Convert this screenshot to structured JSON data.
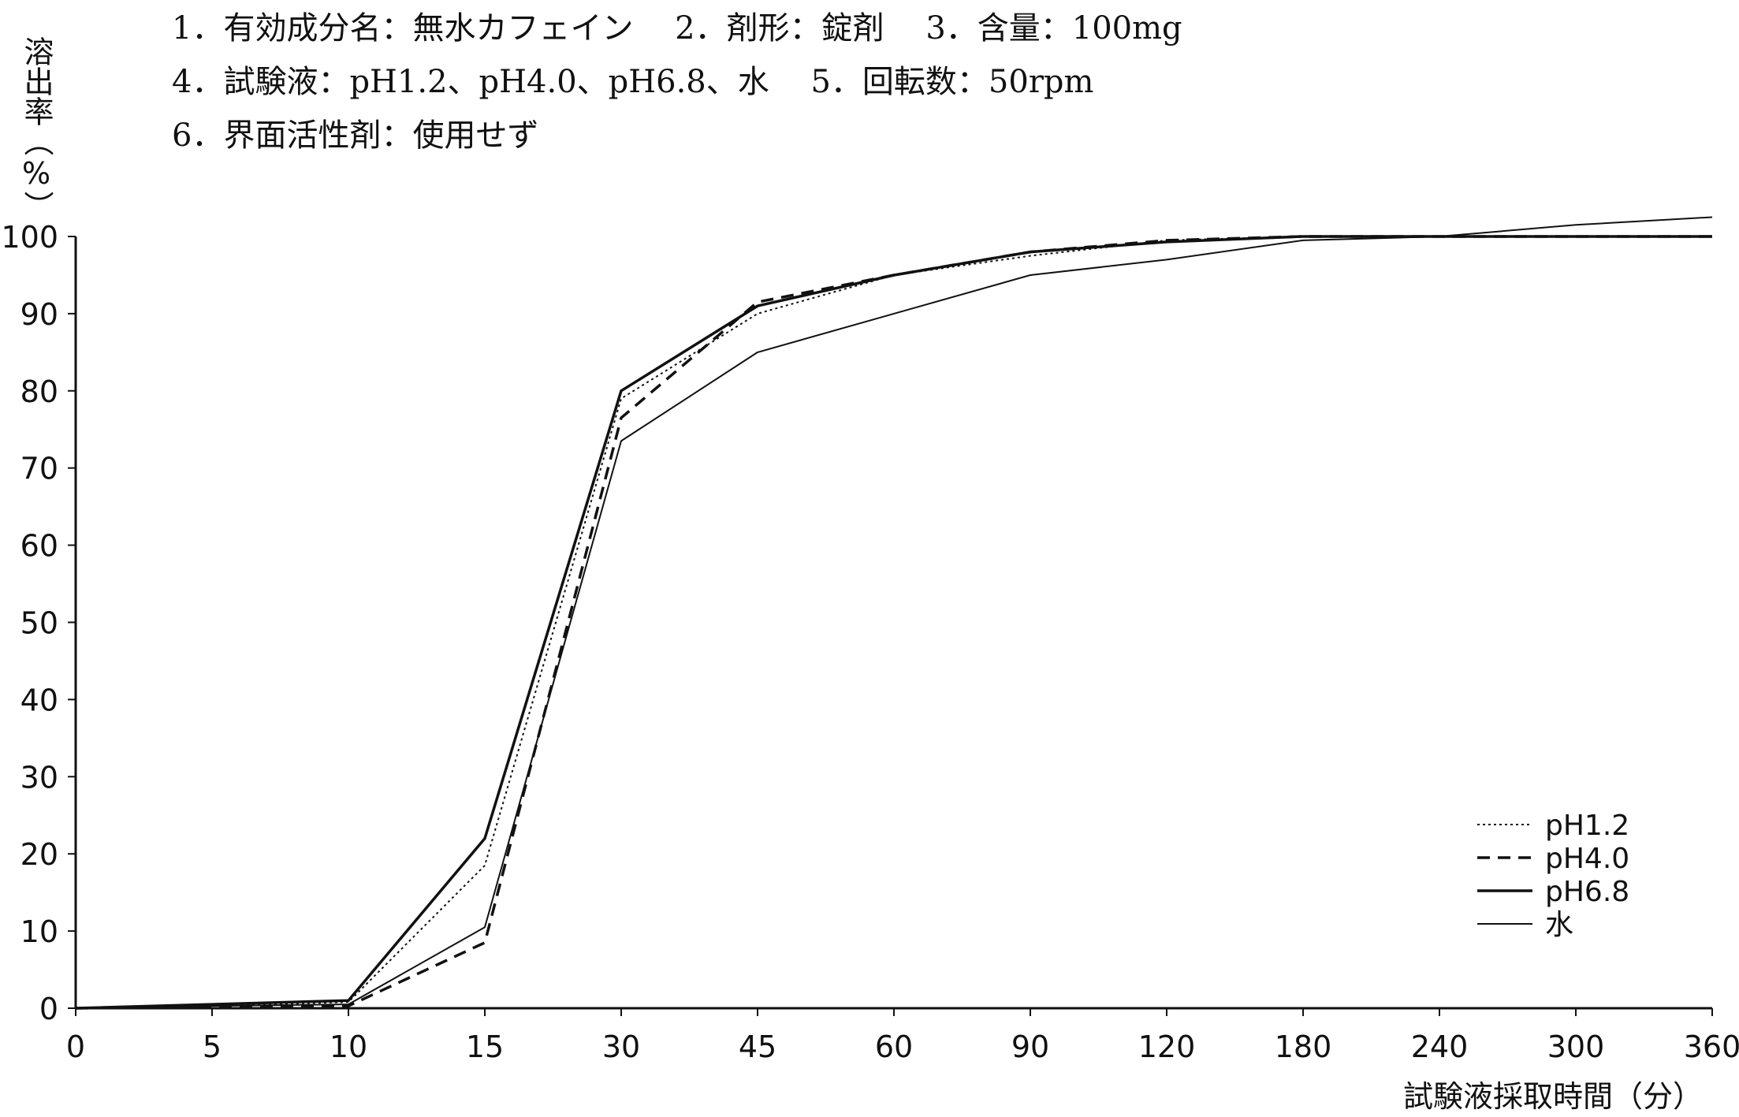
{
  "conditions": {
    "line1": "1．有効成分名：無水カフェイン　 2．剤形：錠剤　 3．含量：100mg",
    "line2": "4．試験液：pH1.2、pH4.0、pH6.8、水　 5．回転数：50rpm",
    "line3": "6．界面活性剤：使用せず"
  },
  "chart_data": {
    "type": "line",
    "title": "",
    "ylabel": "溶出率（%）",
    "xlabel": "試験液採取時間（分）",
    "categories": [
      "0",
      "5",
      "10",
      "15",
      "30",
      "45",
      "60",
      "90",
      "120",
      "180",
      "240",
      "300",
      "360"
    ],
    "x_scale": "categorical (equally spaced sampling times)",
    "ylim": [
      0,
      100
    ],
    "yticks": [
      0,
      10,
      20,
      30,
      40,
      50,
      60,
      70,
      80,
      90,
      100
    ],
    "grid": false,
    "legend_position": "bottom-right",
    "series": [
      {
        "name": "pH1.2",
        "style": "dotted",
        "x": [
          0,
          5,
          10,
          15,
          30,
          45,
          60,
          90,
          120,
          180,
          240,
          300,
          360
        ],
        "values": [
          0,
          0.3,
          0.8,
          18.5,
          79,
          90,
          95,
          97.5,
          99.5,
          100,
          100,
          100,
          100
        ]
      },
      {
        "name": "pH4.0",
        "style": "dashed",
        "x": [
          0,
          5,
          10,
          15,
          30,
          45,
          60,
          90,
          120,
          180,
          240,
          300,
          360
        ],
        "values": [
          0,
          0.2,
          0.3,
          8.5,
          76.5,
          91.5,
          95,
          98,
          99.5,
          100,
          100,
          100,
          100
        ]
      },
      {
        "name": "pH6.8",
        "style": "solid-thick",
        "x": [
          0,
          5,
          10,
          15,
          30,
          45,
          60,
          90,
          120,
          180,
          240,
          300,
          360
        ],
        "values": [
          0,
          0.5,
          1,
          22,
          80,
          91,
          95,
          98,
          99.3,
          100,
          100,
          100,
          100
        ]
      },
      {
        "name": "水",
        "style": "solid-thin",
        "x": [
          0,
          5,
          10,
          15,
          30,
          45,
          60,
          90,
          120,
          180,
          240,
          300,
          360
        ],
        "values": [
          0,
          0.3,
          0.5,
          10.5,
          73.5,
          85,
          90,
          95,
          97,
          99.5,
          100,
          101.5,
          102.5
        ]
      }
    ]
  }
}
